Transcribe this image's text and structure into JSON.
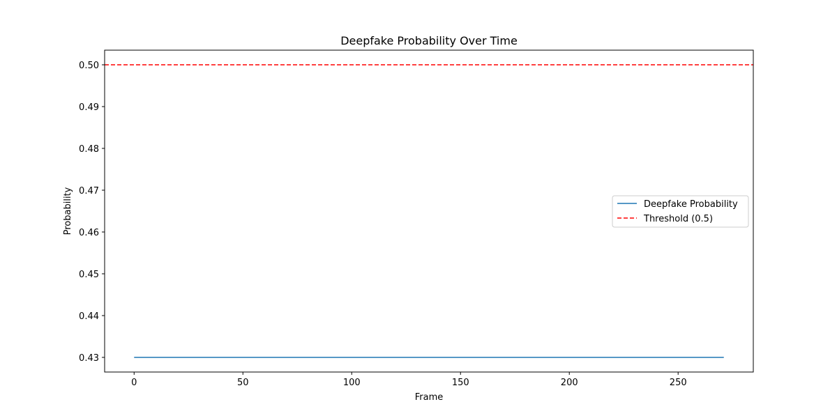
{
  "chart_data": {
    "type": "line",
    "title": "Deepfake Probability Over Time",
    "xlabel": "Frame",
    "ylabel": "Probability",
    "xlim": [
      -13.55,
      284.55
    ],
    "ylim": [
      0.4265,
      0.5035
    ],
    "xticks": [
      0,
      50,
      100,
      150,
      200,
      250
    ],
    "xtick_labels": [
      "0",
      "50",
      "100",
      "150",
      "200",
      "250"
    ],
    "yticks": [
      0.43,
      0.44,
      0.45,
      0.46,
      0.47,
      0.48,
      0.49,
      0.5
    ],
    "ytick_labels": [
      "0.43",
      "0.44",
      "0.45",
      "0.46",
      "0.47",
      "0.48",
      "0.49",
      "0.50"
    ],
    "grid": false,
    "legend_position": "center-right",
    "series": [
      {
        "name": "Deepfake Probability",
        "style": "solid",
        "color": "#1f77b4",
        "x": [
          0,
          271
        ],
        "y": [
          0.43,
          0.43
        ]
      }
    ],
    "threshold": {
      "name": "Threshold (0.5)",
      "style": "dashed",
      "color": "#ff0000",
      "y": 0.5
    }
  }
}
